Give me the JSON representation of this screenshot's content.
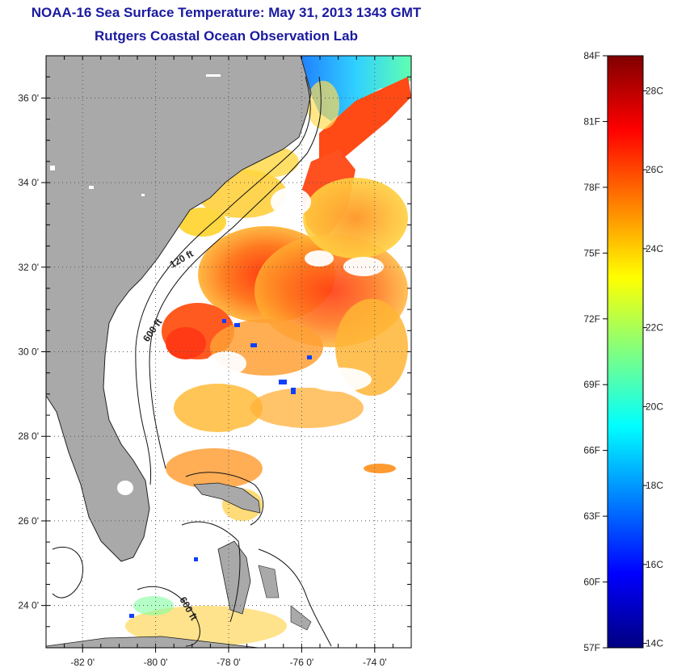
{
  "title_line1": "NOAA-16 Sea Surface Temperature:  May 31, 2013 1343 GMT",
  "title_line2": "Rutgers Coastal Ocean Observation Lab",
  "colors": {
    "land": "#a9a9a9",
    "cloud_mask": "#ffffff",
    "frame": "#000000",
    "grid": "#555555"
  },
  "map": {
    "lon_range": [
      -83,
      -73
    ],
    "lat_range": [
      23,
      37
    ],
    "lon_ticks": [
      {
        "value": -82,
        "label": "-82 0'"
      },
      {
        "value": -80,
        "label": "-80 0'"
      },
      {
        "value": -78,
        "label": "-78 0'"
      },
      {
        "value": -76,
        "label": "-76 0'"
      },
      {
        "value": -74,
        "label": "-74 0'"
      }
    ],
    "lat_ticks": [
      {
        "value": 24,
        "label": "24 0'"
      },
      {
        "value": 26,
        "label": "26 0'"
      },
      {
        "value": 28,
        "label": "28 0'"
      },
      {
        "value": 30,
        "label": "30 0'"
      },
      {
        "value": 32,
        "label": "32 0'"
      },
      {
        "value": 34,
        "label": "34 0'"
      },
      {
        "value": 36,
        "label": "36 0'"
      }
    ],
    "isobath_labels": [
      "120 ft",
      "600 ft",
      "600 ft"
    ]
  },
  "colorbar": {
    "min_f": 57,
    "max_f": 84,
    "f_ticks": [
      {
        "value": 84,
        "label": "84F"
      },
      {
        "value": 81,
        "label": "81F"
      },
      {
        "value": 78,
        "label": "78F"
      },
      {
        "value": 75,
        "label": "75F"
      },
      {
        "value": 72,
        "label": "72F"
      },
      {
        "value": 69,
        "label": "69F"
      },
      {
        "value": 66,
        "label": "66F"
      },
      {
        "value": 63,
        "label": "63F"
      },
      {
        "value": 60,
        "label": "60F"
      },
      {
        "value": 57,
        "label": "57F"
      }
    ],
    "c_ticks": [
      {
        "value": 28,
        "label": "28C"
      },
      {
        "value": 26,
        "label": "26C"
      },
      {
        "value": 24,
        "label": "24C"
      },
      {
        "value": 22,
        "label": "22C"
      },
      {
        "value": 20,
        "label": "20C"
      },
      {
        "value": 18,
        "label": "18C"
      },
      {
        "value": 16,
        "label": "16C"
      },
      {
        "value": 14,
        "label": "14C"
      }
    ],
    "stops": [
      "#800000",
      "#ff0000",
      "#ff8000",
      "#ffff00",
      "#80ff80",
      "#00ffff",
      "#0080ff",
      "#0000ff",
      "#000080"
    ]
  }
}
